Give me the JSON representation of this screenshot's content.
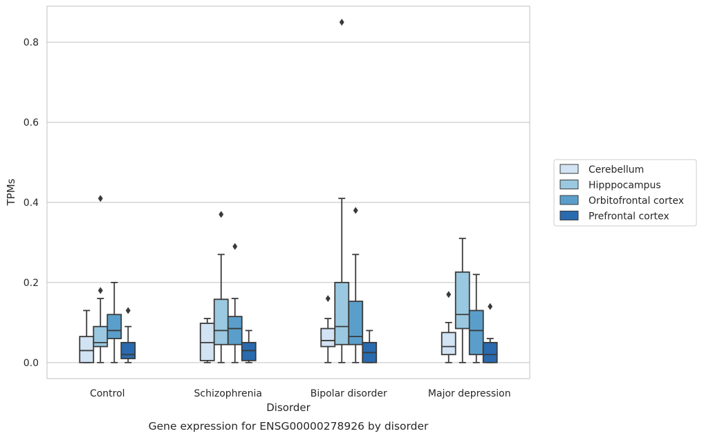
{
  "chart_data": {
    "type": "box",
    "title": "",
    "caption": "Gene expression for ENSG00000278926 by disorder",
    "xlabel": "Disorder",
    "ylabel": "TPMs",
    "ylim": [
      -0.04,
      0.89
    ],
    "yticks": [
      0.0,
      0.2,
      0.4,
      0.6,
      0.8
    ],
    "ytick_labels": [
      "0.0",
      "0.2",
      "0.4",
      "0.6",
      "0.8"
    ],
    "grid": "horizontal",
    "legend_position": "right",
    "categories": [
      "Control",
      "Schizophrenia",
      "Bipolar disorder",
      "Major depression"
    ],
    "series": [
      {
        "name": "Cerebellum",
        "color": "#d2e3f3",
        "boxes": [
          {
            "whisker_low": 0.0,
            "q1": 0.0,
            "median": 0.03,
            "q3": 0.065,
            "whisker_high": 0.13,
            "outliers": []
          },
          {
            "whisker_low": 0.0,
            "q1": 0.005,
            "median": 0.05,
            "q3": 0.098,
            "whisker_high": 0.11,
            "outliers": []
          },
          {
            "whisker_low": 0.0,
            "q1": 0.04,
            "median": 0.055,
            "q3": 0.085,
            "whisker_high": 0.11,
            "outliers": [
              0.16
            ]
          },
          {
            "whisker_low": 0.0,
            "q1": 0.02,
            "median": 0.04,
            "q3": 0.075,
            "whisker_high": 0.1,
            "outliers": [
              0.17
            ]
          }
        ]
      },
      {
        "name": "Hipppocampus",
        "color": "#9ac8e0",
        "boxes": [
          {
            "whisker_low": 0.0,
            "q1": 0.04,
            "median": 0.05,
            "q3": 0.09,
            "whisker_high": 0.16,
            "outliers": [
              0.18,
              0.41
            ]
          },
          {
            "whisker_low": 0.0,
            "q1": 0.045,
            "median": 0.08,
            "q3": 0.158,
            "whisker_high": 0.27,
            "outliers": [
              0.37
            ]
          },
          {
            "whisker_low": 0.0,
            "q1": 0.045,
            "median": 0.09,
            "q3": 0.2,
            "whisker_high": 0.41,
            "outliers": [
              0.85
            ]
          },
          {
            "whisker_low": 0.0,
            "q1": 0.085,
            "median": 0.12,
            "q3": 0.226,
            "whisker_high": 0.31,
            "outliers": []
          }
        ]
      },
      {
        "name": "Orbitofrontal cortex",
        "color": "#5a9fcb",
        "boxes": [
          {
            "whisker_low": 0.0,
            "q1": 0.06,
            "median": 0.08,
            "q3": 0.12,
            "whisker_high": 0.2,
            "outliers": []
          },
          {
            "whisker_low": 0.0,
            "q1": 0.045,
            "median": 0.085,
            "q3": 0.115,
            "whisker_high": 0.16,
            "outliers": [
              0.29
            ]
          },
          {
            "whisker_low": 0.0,
            "q1": 0.045,
            "median": 0.065,
            "q3": 0.153,
            "whisker_high": 0.27,
            "outliers": [
              0.38
            ]
          },
          {
            "whisker_low": 0.0,
            "q1": 0.02,
            "median": 0.08,
            "q3": 0.13,
            "whisker_high": 0.22,
            "outliers": []
          }
        ]
      },
      {
        "name": "Prefrontal cortex",
        "color": "#2a6aae",
        "boxes": [
          {
            "whisker_low": 0.0,
            "q1": 0.01,
            "median": 0.02,
            "q3": 0.05,
            "whisker_high": 0.09,
            "outliers": [
              0.13
            ]
          },
          {
            "whisker_low": 0.0,
            "q1": 0.005,
            "median": 0.03,
            "q3": 0.05,
            "whisker_high": 0.08,
            "outliers": []
          },
          {
            "whisker_low": 0.0,
            "q1": 0.0,
            "median": 0.025,
            "q3": 0.05,
            "whisker_high": 0.08,
            "outliers": []
          },
          {
            "whisker_low": 0.0,
            "q1": 0.0,
            "median": 0.02,
            "q3": 0.05,
            "whisker_high": 0.06,
            "outliers": [
              0.14
            ]
          }
        ]
      }
    ]
  }
}
